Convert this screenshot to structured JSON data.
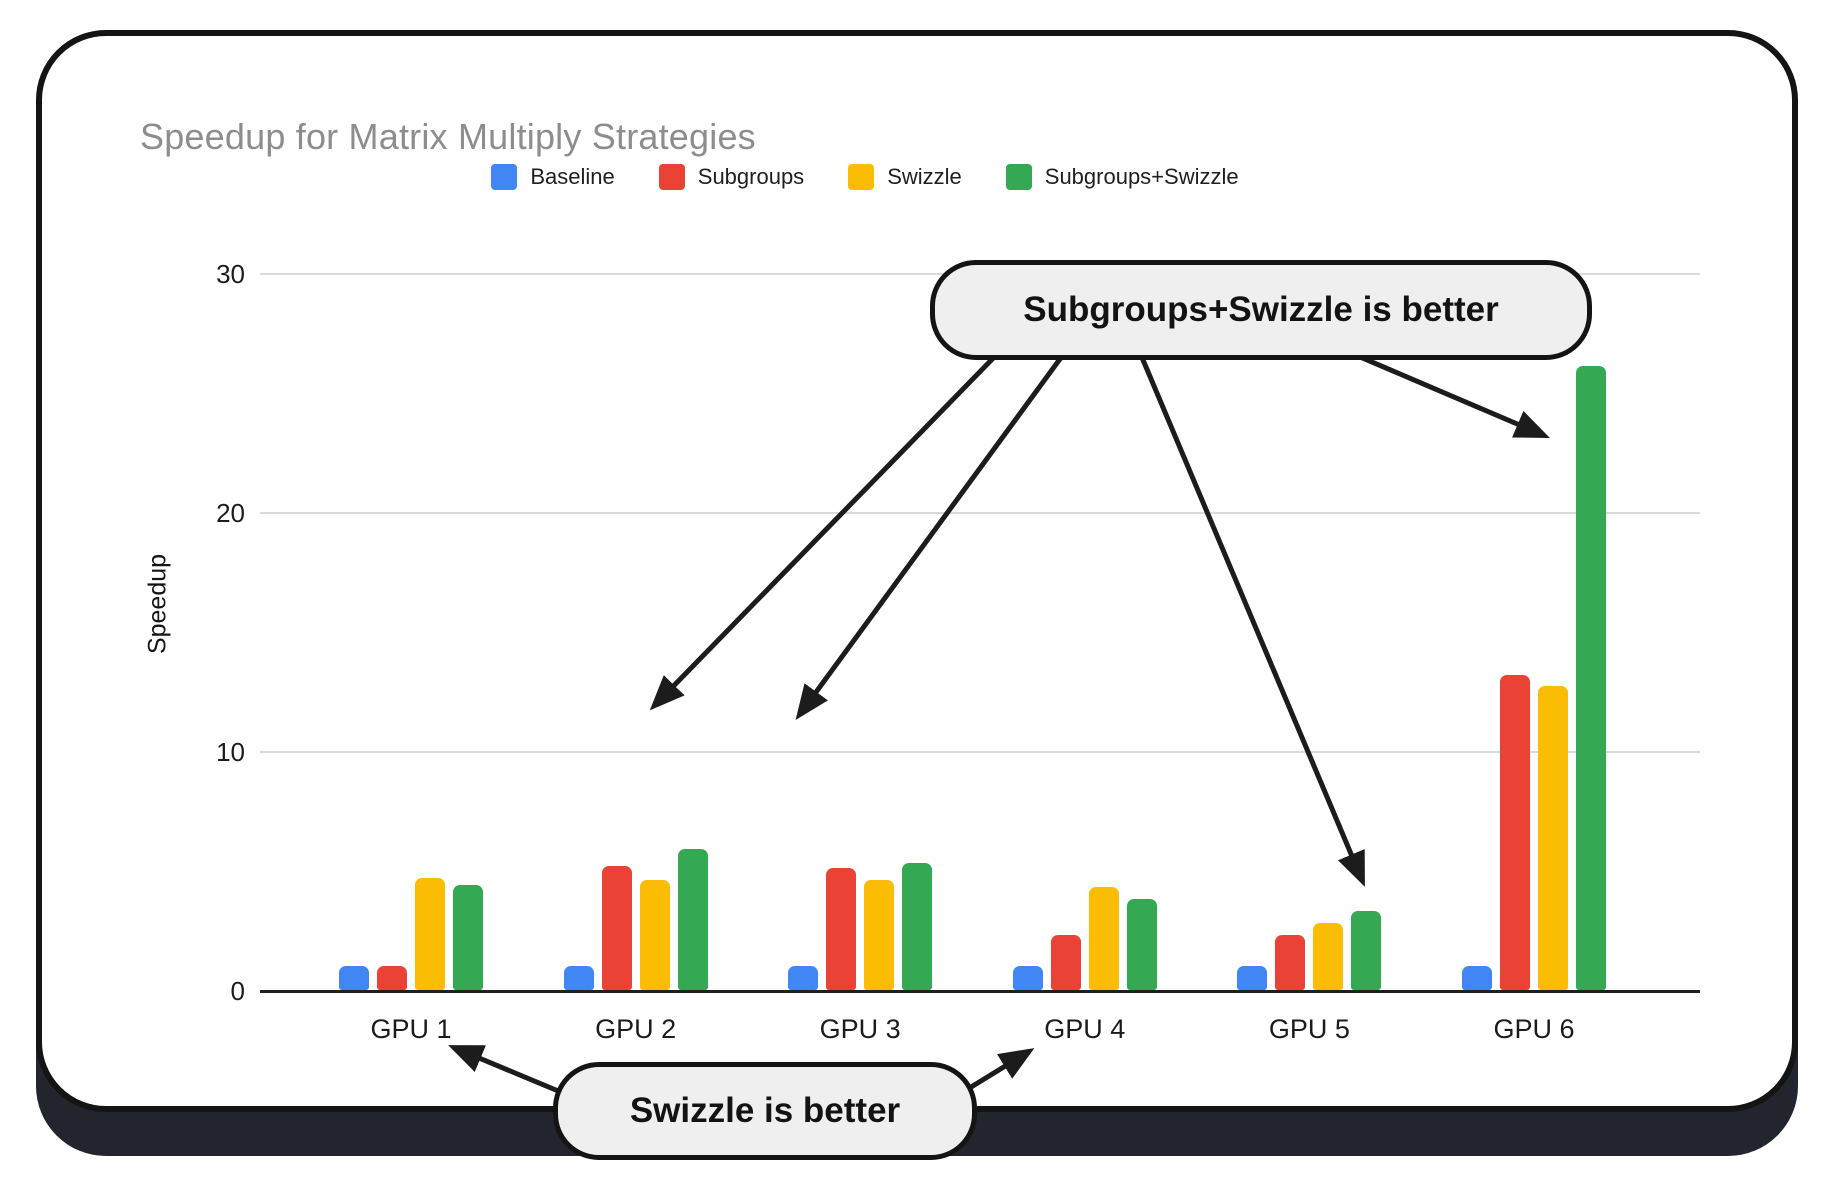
{
  "chart_data": {
    "type": "bar",
    "title": "Speedup for Matrix Multiply Strategies",
    "xlabel": "",
    "ylabel": "Speedup",
    "categories": [
      "GPU 1",
      "GPU 2",
      "GPU 3",
      "GPU 4",
      "GPU 5",
      "GPU 6"
    ],
    "series": [
      {
        "name": "Baseline",
        "color": "#4285F4",
        "values": [
          1.0,
          1.0,
          1.0,
          1.0,
          1.0,
          1.0
        ]
      },
      {
        "name": "Subgroups",
        "color": "#EA4335",
        "values": [
          1.0,
          5.2,
          5.1,
          2.3,
          2.3,
          13.2
        ]
      },
      {
        "name": "Swizzle",
        "color": "#FBBC04",
        "values": [
          4.7,
          4.6,
          4.6,
          4.3,
          2.8,
          12.7
        ]
      },
      {
        "name": "Subgroups+Swizzle",
        "color": "#34A853",
        "values": [
          4.4,
          5.9,
          5.3,
          3.8,
          3.3,
          26.1
        ]
      }
    ],
    "yticks": [
      0,
      10,
      20,
      30
    ],
    "ylim": [
      0,
      31.8
    ],
    "grid": true,
    "legend_position": "top"
  },
  "annotations": [
    {
      "text": "Subgroups+Swizzle is better",
      "targets": [
        "GPU 2",
        "GPU 3",
        "GPU 5",
        "GPU 6"
      ]
    },
    {
      "text": "Swizzle is better",
      "targets": [
        "GPU 1",
        "GPU 4"
      ]
    }
  ],
  "style_colors": {
    "card_background": "#ffffff",
    "card_border": "#141414",
    "card_base": "#22252d",
    "title_text": "#8d8d8d",
    "gridline": "#dadada",
    "callout_fill": "#efefef"
  }
}
